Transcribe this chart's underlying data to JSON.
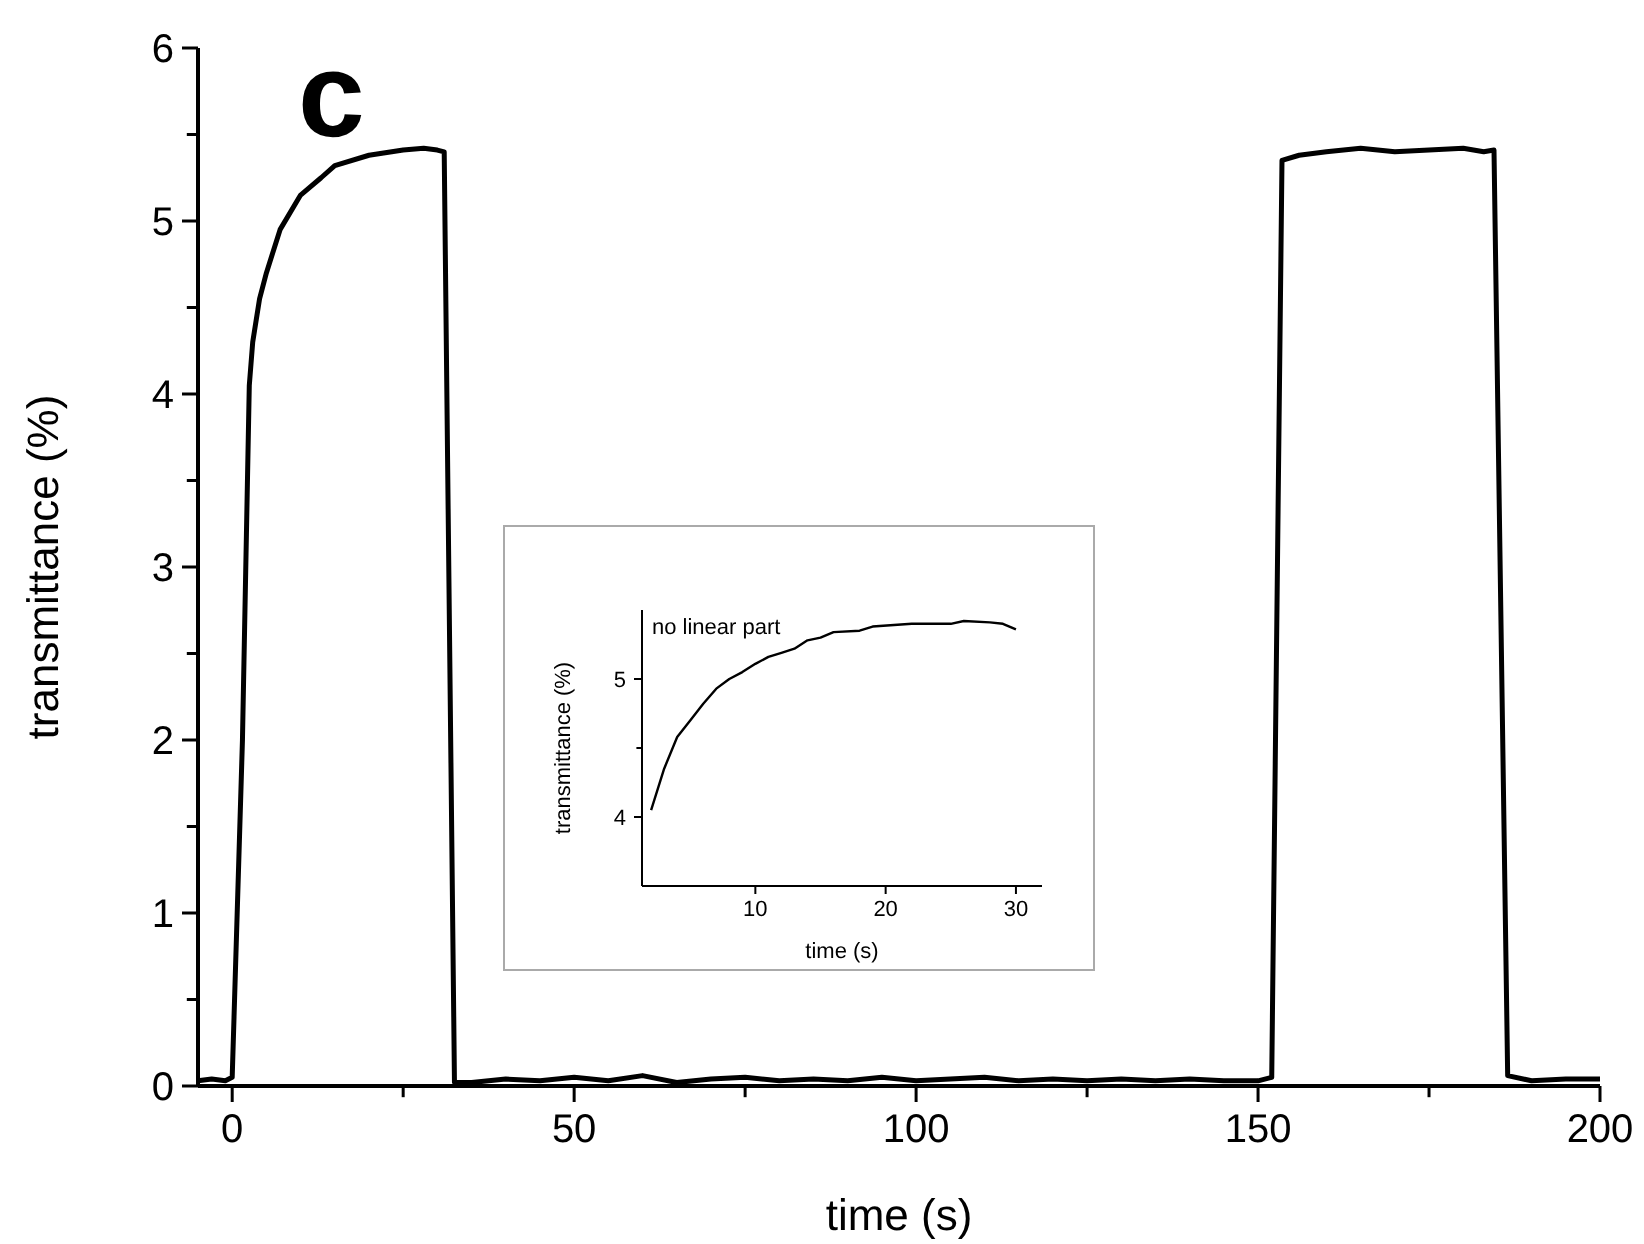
{
  "chart_data": [
    {
      "type": "line",
      "xlabel": "time (s)",
      "ylabel": "transmittance (%)",
      "annotations": [
        "c"
      ],
      "xlim": [
        -5,
        200
      ],
      "xticks": [
        0,
        {
          "value": 25,
          "label": null
        },
        50,
        {
          "value": 75,
          "label": null
        },
        100,
        {
          "value": 125,
          "label": null
        },
        150,
        {
          "value": 175,
          "label": null
        },
        200
      ],
      "ylim": [
        0,
        6
      ],
      "yticks": [
        0,
        {
          "value": 0.5,
          "label": null
        },
        1,
        {
          "value": 1.5,
          "label": null
        },
        2,
        {
          "value": 2.5,
          "label": null
        },
        3,
        {
          "value": 3.5,
          "label": null
        },
        4,
        {
          "value": 4.5,
          "label": null
        },
        5,
        {
          "value": 5.5,
          "label": null
        },
        6
      ],
      "grid": false,
      "marker": "none",
      "line_style": "solid",
      "series": [
        {
          "color": "#000000",
          "x": [
            -5,
            -3,
            -1,
            0,
            1.5,
            2.5,
            3,
            4,
            5,
            7,
            10,
            13,
            15,
            20,
            25,
            28,
            30,
            31,
            32.5,
            35,
            40,
            45,
            50,
            55,
            60,
            65,
            70,
            75,
            80,
            85,
            90,
            95,
            100,
            105,
            110,
            115,
            120,
            125,
            130,
            135,
            140,
            145,
            150,
            152,
            153.5,
            156,
            160,
            165,
            170,
            175,
            180,
            183,
            184.5,
            186.5,
            190,
            195,
            200
          ],
          "values": [
            0.03,
            0.04,
            0.03,
            0.05,
            2.0,
            4.05,
            4.3,
            4.55,
            4.7,
            4.95,
            5.15,
            5.25,
            5.32,
            5.38,
            5.41,
            5.42,
            5.41,
            5.4,
            0.02,
            0.02,
            0.04,
            0.03,
            0.05,
            0.03,
            0.06,
            0.02,
            0.04,
            0.05,
            0.03,
            0.04,
            0.03,
            0.05,
            0.03,
            0.04,
            0.05,
            0.03,
            0.04,
            0.03,
            0.04,
            0.03,
            0.04,
            0.03,
            0.03,
            0.05,
            5.35,
            5.38,
            5.4,
            5.42,
            5.4,
            5.41,
            5.42,
            5.4,
            5.41,
            0.06,
            0.03,
            0.04,
            0.04
          ]
        }
      ]
    },
    {
      "type": "line",
      "xlabel": "time (s)",
      "ylabel": "transmittance (%)",
      "annotations": [
        "no linear part"
      ],
      "xlim": [
        1.3,
        32
      ],
      "xticks": [
        10,
        20,
        30
      ],
      "ylim": [
        3.5,
        5.5
      ],
      "yticks": [
        4,
        {
          "value": 4.5,
          "label": null
        },
        5
      ],
      "grid": false,
      "marker": "none",
      "line_style": "solid",
      "series": [
        {
          "color": "#000000",
          "x": [
            2,
            3,
            4,
            5,
            6,
            7,
            8,
            9,
            10,
            11,
            12,
            13,
            14,
            15,
            16,
            18,
            19,
            22,
            25,
            26,
            28,
            29,
            30
          ],
          "values": [
            4.05,
            4.35,
            4.58,
            4.7,
            4.82,
            4.93,
            5.0,
            5.05,
            5.11,
            5.16,
            5.19,
            5.22,
            5.28,
            5.3,
            5.34,
            5.35,
            5.38,
            5.4,
            5.4,
            5.42,
            5.41,
            5.4,
            5.36
          ]
        }
      ]
    }
  ]
}
